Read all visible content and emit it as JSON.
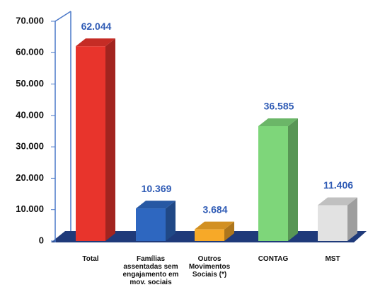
{
  "chart_data": {
    "type": "bar3d",
    "categories": [
      "Total",
      "Famílias assentadas sem engajamento em mov. sociais",
      "Outros Movimentos Sociais (*)",
      "CONTAG",
      "MST"
    ],
    "values": [
      62044,
      10369,
      3684,
      36585,
      11406
    ],
    "value_labels": [
      "62.044",
      "10.369",
      "3.684",
      "36.585",
      "11.406"
    ],
    "colors": [
      "#e8342c",
      "#2e67c0",
      "#f7a928",
      "#7ed67a",
      "#e2e2e2"
    ],
    "ylim": [
      0,
      70000
    ],
    "yticks": [
      0,
      {
        "value": 10000,
        "label": "10.000"
      },
      {
        "value": 20000,
        "label": "20.000"
      },
      {
        "value": 30000,
        "label": "30.000"
      },
      {
        "value": 40000,
        "label": "40.000"
      },
      {
        "value": 50000,
        "label": "50.000"
      },
      {
        "value": 60000,
        "label": "60.000"
      },
      {
        "value": 70000,
        "label": "70.000"
      }
    ]
  }
}
